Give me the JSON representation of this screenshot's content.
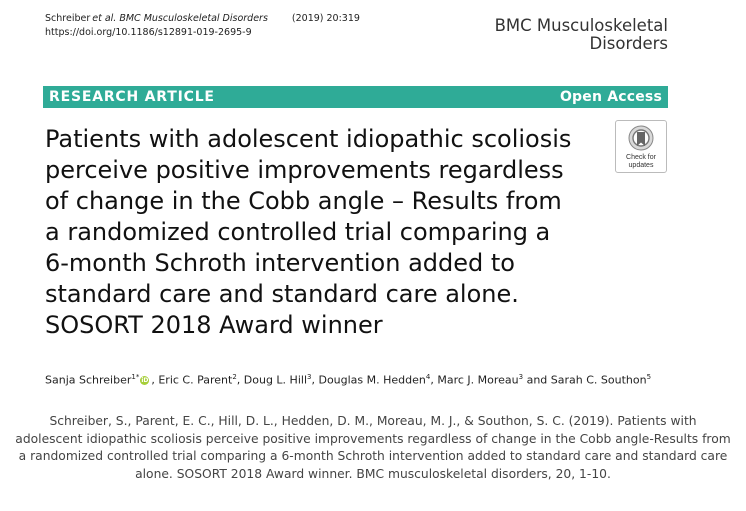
{
  "header": {
    "authors_short": "Schreiber",
    "et_al": "et al.",
    "journal_short": "BMC Musculoskeletal Disorders",
    "year_volume": "(2019) 20:319",
    "doi": "https://doi.org/10.1186/s12891-019-2695-9"
  },
  "journal_logo": {
    "line1": "BMC Musculoskeletal",
    "line2": "Disorders"
  },
  "banner": {
    "left": "RESEARCH ARTICLE",
    "right": "Open Access",
    "color": "#2fab97"
  },
  "title_lines": [
    "Patients with adolescent idiopathic scoliosis",
    "perceive positive improvements regardless",
    "of change in the Cobb angle – Results from",
    "a randomized controlled trial comparing a",
    "6-month Schroth intervention added to",
    "standard care and standard care alone.",
    "SOSORT 2018 Award winner"
  ],
  "badge": {
    "line1": "Check for",
    "line2": "updates",
    "icon": "bookmark-icon"
  },
  "authors": [
    {
      "name": "Sanja Schreiber",
      "sup": "1*",
      "orcid": true,
      "sep": ", "
    },
    {
      "name": "Eric C. Parent",
      "sup": "2",
      "sep": ", "
    },
    {
      "name": "Doug L. Hill",
      "sup": "3",
      "sep": ", "
    },
    {
      "name": "Douglas M. Hedden",
      "sup": "4",
      "sep": ", "
    },
    {
      "name": "Marc J. Moreau",
      "sup": "3",
      "sep": " and "
    },
    {
      "name": "Sarah C. Southon",
      "sup": "5",
      "sep": ""
    }
  ],
  "caption_lines": [
    "Schreiber, S., Parent, E. C., Hill, D. L., Hedden, D. M., Moreau, M. J., & Southon, S. C. (2019). Patients with",
    "adolescent idiopathic scoliosis perceive positive improvements regardless of change in the Cobb angle-Results from",
    "a randomized controlled trial comparing a 6-month Schroth intervention added to standard care and standard care",
    "alone. SOSORT 2018 Award winner. BMC musculoskeletal disorders, 20, 1-10."
  ]
}
